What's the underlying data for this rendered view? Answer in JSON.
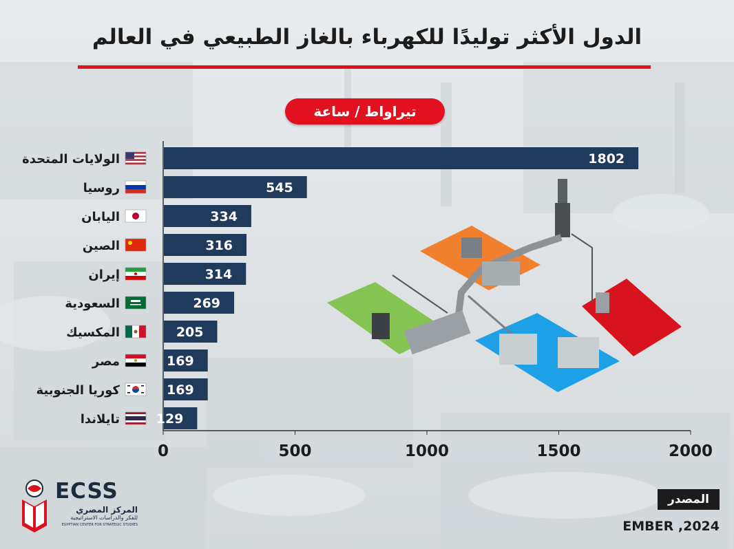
{
  "title": "الدول الأكثر توليدًا للكهرباء بالغاز الطبيعي في العالم",
  "unit_label": "تيراواط / ساعة",
  "colors": {
    "accent": "#e2111f",
    "bar": "#1f3a5b",
    "text": "#1c1c1c"
  },
  "chart_data": {
    "type": "bar",
    "orientation": "horizontal",
    "categories": [
      "الولايات المتحدة",
      "روسيا",
      "اليابان",
      "الصين",
      "إيران",
      "السعودية",
      "المكسيك",
      "مصر",
      "كوريا الجنوبية",
      "تايلاندا"
    ],
    "values": [
      1802,
      545,
      334,
      316,
      314,
      269,
      205,
      169,
      169,
      129
    ],
    "flags": [
      "us-flag-icon",
      "russia-flag-icon",
      "japan-flag-icon",
      "china-flag-icon",
      "iran-flag-icon",
      "saudi-flag-icon",
      "mexico-flag-icon",
      "egypt-flag-icon",
      "south-korea-flag-icon",
      "thailand-flag-icon"
    ],
    "xlim": [
      0,
      2000
    ],
    "xticks": [
      0,
      500,
      1000,
      1500,
      2000
    ],
    "data_labels": true,
    "grid": false
  },
  "logo": {
    "name": "ECSS",
    "arabic_name": "المركز المصري",
    "arabic_sub": "للفكر والدراسات الاستراتيجية",
    "english_sub": "EGYPTIAN CENTER FOR STRATEGIC STUDIES"
  },
  "source": {
    "label": "المصدر",
    "text": "EMBER ,2024"
  }
}
